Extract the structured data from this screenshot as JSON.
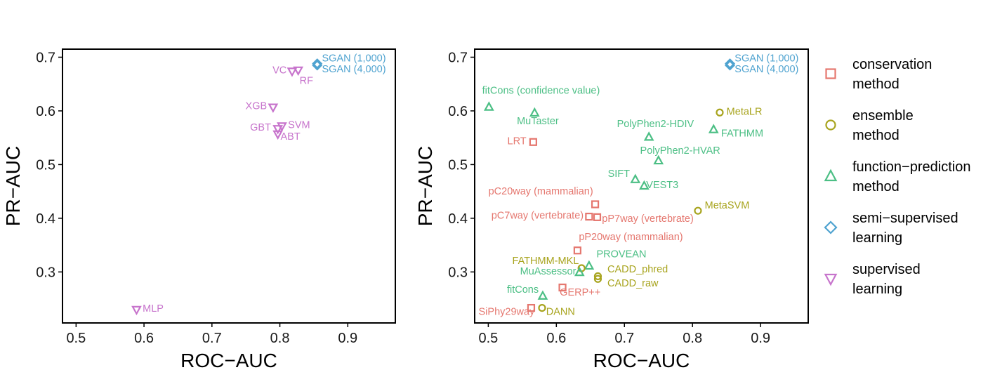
{
  "colors": {
    "conservation": "#E5776F",
    "ensemble": "#A8A41E",
    "function": "#4CBF85",
    "semi": "#4FA3D0",
    "supervised": "#C774CC"
  },
  "legend": [
    {
      "key": "conservation",
      "line1": "conservation",
      "line2": "method",
      "shape": "square"
    },
    {
      "key": "ensemble",
      "line1": "ensemble",
      "line2": "method",
      "shape": "circle"
    },
    {
      "key": "function",
      "line1": "function−prediction",
      "line2": "method",
      "shape": "triangle"
    },
    {
      "key": "semi",
      "line1": "semi−supervised",
      "line2": "learning",
      "shape": "diamond"
    },
    {
      "key": "supervised",
      "line1": "supervised",
      "line2": "learning",
      "shape": "triangle-down"
    }
  ],
  "chart_data": [
    {
      "type": "scatter",
      "xlabel": "ROC−AUC",
      "ylabel": "PR−AUC",
      "xlim": [
        0.48,
        0.97
      ],
      "ylim": [
        0.205,
        0.715
      ],
      "xticks": [
        0.5,
        0.6,
        0.7,
        0.8,
        0.9
      ],
      "yticks": [
        0.3,
        0.4,
        0.5,
        0.6,
        0.7
      ],
      "xtick_labels": [
        "0.5",
        "0.6",
        "0.7",
        "0.8",
        "0.9"
      ],
      "ytick_labels": [
        "0.3",
        "0.4",
        "0.5",
        "0.6",
        "0.7"
      ],
      "grid": false,
      "points": [
        {
          "label": "SGAN (1,000)",
          "x": 0.855,
          "y": 0.688,
          "group": "semi"
        },
        {
          "label": "SGAN (4,000)",
          "x": 0.855,
          "y": 0.685,
          "group": "semi"
        },
        {
          "label": "VC",
          "x": 0.818,
          "y": 0.674,
          "group": "supervised"
        },
        {
          "label": "RF",
          "x": 0.827,
          "y": 0.676,
          "group": "supervised"
        },
        {
          "label": "XGB",
          "x": 0.79,
          "y": 0.607,
          "group": "supervised"
        },
        {
          "label": "GBT",
          "x": 0.797,
          "y": 0.567,
          "group": "supervised"
        },
        {
          "label": "SVM",
          "x": 0.803,
          "y": 0.572,
          "group": "supervised"
        },
        {
          "label": "ABT",
          "x": 0.797,
          "y": 0.557,
          "group": "supervised"
        },
        {
          "label": "MLP",
          "x": 0.589,
          "y": 0.23,
          "group": "supervised"
        }
      ],
      "labels": [
        {
          "text": "SGAN (1,000)",
          "x": 0.862,
          "y": 0.692,
          "anchor": "start",
          "group": "semi"
        },
        {
          "text": "SGAN (4,000)",
          "x": 0.862,
          "y": 0.672,
          "anchor": "start",
          "group": "semi"
        },
        {
          "text": "VC",
          "x": 0.81,
          "y": 0.67,
          "anchor": "end",
          "group": "supervised"
        },
        {
          "text": "RF",
          "x": 0.829,
          "y": 0.65,
          "anchor": "start",
          "group": "supervised"
        },
        {
          "text": "XGB",
          "x": 0.781,
          "y": 0.603,
          "anchor": "end",
          "group": "supervised"
        },
        {
          "text": "GBT",
          "x": 0.787,
          "y": 0.563,
          "anchor": "end",
          "group": "supervised"
        },
        {
          "text": "SVM",
          "x": 0.812,
          "y": 0.568,
          "anchor": "start",
          "group": "supervised"
        },
        {
          "text": "ABT",
          "x": 0.801,
          "y": 0.546,
          "anchor": "start",
          "group": "supervised"
        },
        {
          "text": "MLP",
          "x": 0.598,
          "y": 0.226,
          "anchor": "start",
          "group": "supervised"
        }
      ]
    },
    {
      "type": "scatter",
      "xlabel": "ROC−AUC",
      "ylabel": "PR−AUC",
      "xlim": [
        0.48,
        0.97
      ],
      "ylim": [
        0.205,
        0.715
      ],
      "xticks": [
        0.5,
        0.6,
        0.7,
        0.8,
        0.9
      ],
      "yticks": [
        0.3,
        0.4,
        0.5,
        0.6,
        0.7
      ],
      "xtick_labels": [
        "0.5",
        "0.6",
        "0.7",
        "0.8",
        "0.9"
      ],
      "ytick_labels": [
        "0.3",
        "0.4",
        "0.5",
        "0.6",
        "0.7"
      ],
      "grid": false,
      "points": [
        {
          "label": "SGAN (1,000)",
          "x": 0.855,
          "y": 0.688,
          "group": "semi"
        },
        {
          "label": "SGAN (4,000)",
          "x": 0.855,
          "y": 0.685,
          "group": "semi"
        },
        {
          "label": "fitCons (confidence value)",
          "x": 0.501,
          "y": 0.607,
          "group": "function"
        },
        {
          "label": "MuTaster",
          "x": 0.568,
          "y": 0.596,
          "group": "function"
        },
        {
          "label": "LRT",
          "x": 0.566,
          "y": 0.542,
          "group": "conservation"
        },
        {
          "label": "MetaLR",
          "x": 0.84,
          "y": 0.597,
          "group": "ensemble"
        },
        {
          "label": "PolyPhen2-HDIV",
          "x": 0.736,
          "y": 0.551,
          "group": "function"
        },
        {
          "label": "FATHMM",
          "x": 0.831,
          "y": 0.565,
          "group": "function"
        },
        {
          "label": "PolyPhen2-HVAR",
          "x": 0.75,
          "y": 0.507,
          "group": "function"
        },
        {
          "label": "SIFT",
          "x": 0.716,
          "y": 0.472,
          "group": "function"
        },
        {
          "label": "VEST3",
          "x": 0.729,
          "y": 0.46,
          "group": "function"
        },
        {
          "label": "pC20way (mammalian)",
          "x": 0.657,
          "y": 0.426,
          "group": "conservation"
        },
        {
          "label": "MetaSVM",
          "x": 0.808,
          "y": 0.414,
          "group": "ensemble"
        },
        {
          "label": "pC7way (vertebrate)",
          "x": 0.648,
          "y": 0.403,
          "group": "conservation"
        },
        {
          "label": "pP7way (vertebrate)",
          "x": 0.66,
          "y": 0.402,
          "group": "conservation"
        },
        {
          "label": "pP20way (mammalian)",
          "x": 0.631,
          "y": 0.34,
          "group": "conservation"
        },
        {
          "label": "PROVEAN",
          "x": 0.648,
          "y": 0.311,
          "group": "function"
        },
        {
          "label": "FATHMM-MKL",
          "x": 0.637,
          "y": 0.307,
          "group": "ensemble"
        },
        {
          "label": "MuAssessor",
          "x": 0.634,
          "y": 0.299,
          "group": "function"
        },
        {
          "label": "CADD_phred",
          "x": 0.661,
          "y": 0.292,
          "group": "ensemble"
        },
        {
          "label": "CADD_raw",
          "x": 0.661,
          "y": 0.287,
          "group": "ensemble"
        },
        {
          "label": "GERP++",
          "x": 0.609,
          "y": 0.271,
          "group": "conservation"
        },
        {
          "label": "fitCons",
          "x": 0.58,
          "y": 0.255,
          "group": "function"
        },
        {
          "label": "SiPhy29way",
          "x": 0.563,
          "y": 0.233,
          "group": "conservation"
        },
        {
          "label": "DANN",
          "x": 0.579,
          "y": 0.233,
          "group": "ensemble"
        }
      ],
      "labels": [
        {
          "text": "SGAN (1,000)",
          "x": 0.862,
          "y": 0.692,
          "anchor": "start",
          "group": "semi"
        },
        {
          "text": "SGAN (4,000)",
          "x": 0.862,
          "y": 0.672,
          "anchor": "start",
          "group": "semi"
        },
        {
          "text": "fitCons (confidence value)",
          "x": 0.491,
          "y": 0.632,
          "anchor": "start",
          "group": "function"
        },
        {
          "text": "MuTaster",
          "x": 0.542,
          "y": 0.575,
          "anchor": "start",
          "group": "function"
        },
        {
          "text": "LRT",
          "x": 0.556,
          "y": 0.538,
          "anchor": "end",
          "group": "conservation"
        },
        {
          "text": "MetaLR",
          "x": 0.85,
          "y": 0.593,
          "anchor": "start",
          "group": "ensemble"
        },
        {
          "text": "PolyPhen2-HDIV",
          "x": 0.689,
          "y": 0.57,
          "anchor": "start",
          "group": "function"
        },
        {
          "text": "FATHMM",
          "x": 0.842,
          "y": 0.552,
          "anchor": "start",
          "group": "function"
        },
        {
          "text": "PolyPhen2-HVAR",
          "x": 0.723,
          "y": 0.52,
          "anchor": "start",
          "group": "function"
        },
        {
          "text": "SIFT",
          "x": 0.708,
          "y": 0.477,
          "anchor": "end",
          "group": "function"
        },
        {
          "text": "VEST3",
          "x": 0.732,
          "y": 0.456,
          "anchor": "start",
          "group": "function"
        },
        {
          "text": "pC20way (mammalian)",
          "x": 0.654,
          "y": 0.444,
          "anchor": "end",
          "group": "conservation"
        },
        {
          "text": "MetaSVM",
          "x": 0.818,
          "y": 0.418,
          "anchor": "start",
          "group": "ensemble"
        },
        {
          "text": "pC7way (vertebrate)",
          "x": 0.64,
          "y": 0.399,
          "anchor": "end",
          "group": "conservation"
        },
        {
          "text": "pP7way (vertebrate)",
          "x": 0.667,
          "y": 0.393,
          "anchor": "start",
          "group": "conservation"
        },
        {
          "text": "pP20way (mammalian)",
          "x": 0.633,
          "y": 0.359,
          "anchor": "start",
          "group": "conservation"
        },
        {
          "text": "PROVEAN",
          "x": 0.659,
          "y": 0.327,
          "anchor": "start",
          "group": "function"
        },
        {
          "text": "FATHMM-MKL",
          "x": 0.633,
          "y": 0.315,
          "anchor": "end",
          "group": "ensemble"
        },
        {
          "text": "MuAssessor",
          "x": 0.629,
          "y": 0.295,
          "anchor": "end",
          "group": "function"
        },
        {
          "text": "CADD_phred",
          "x": 0.675,
          "y": 0.299,
          "anchor": "start",
          "group": "ensemble"
        },
        {
          "text": "CADD_raw",
          "x": 0.675,
          "y": 0.273,
          "anchor": "start",
          "group": "ensemble"
        },
        {
          "text": "GERP++",
          "x": 0.605,
          "y": 0.256,
          "anchor": "start",
          "group": "conservation"
        },
        {
          "text": "fitCons",
          "x": 0.574,
          "y": 0.261,
          "anchor": "end",
          "group": "function"
        },
        {
          "text": "SiPhy29way",
          "x": 0.568,
          "y": 0.22,
          "anchor": "end",
          "group": "conservation"
        },
        {
          "text": "DANN",
          "x": 0.585,
          "y": 0.22,
          "anchor": "start",
          "group": "ensemble"
        }
      ]
    }
  ]
}
